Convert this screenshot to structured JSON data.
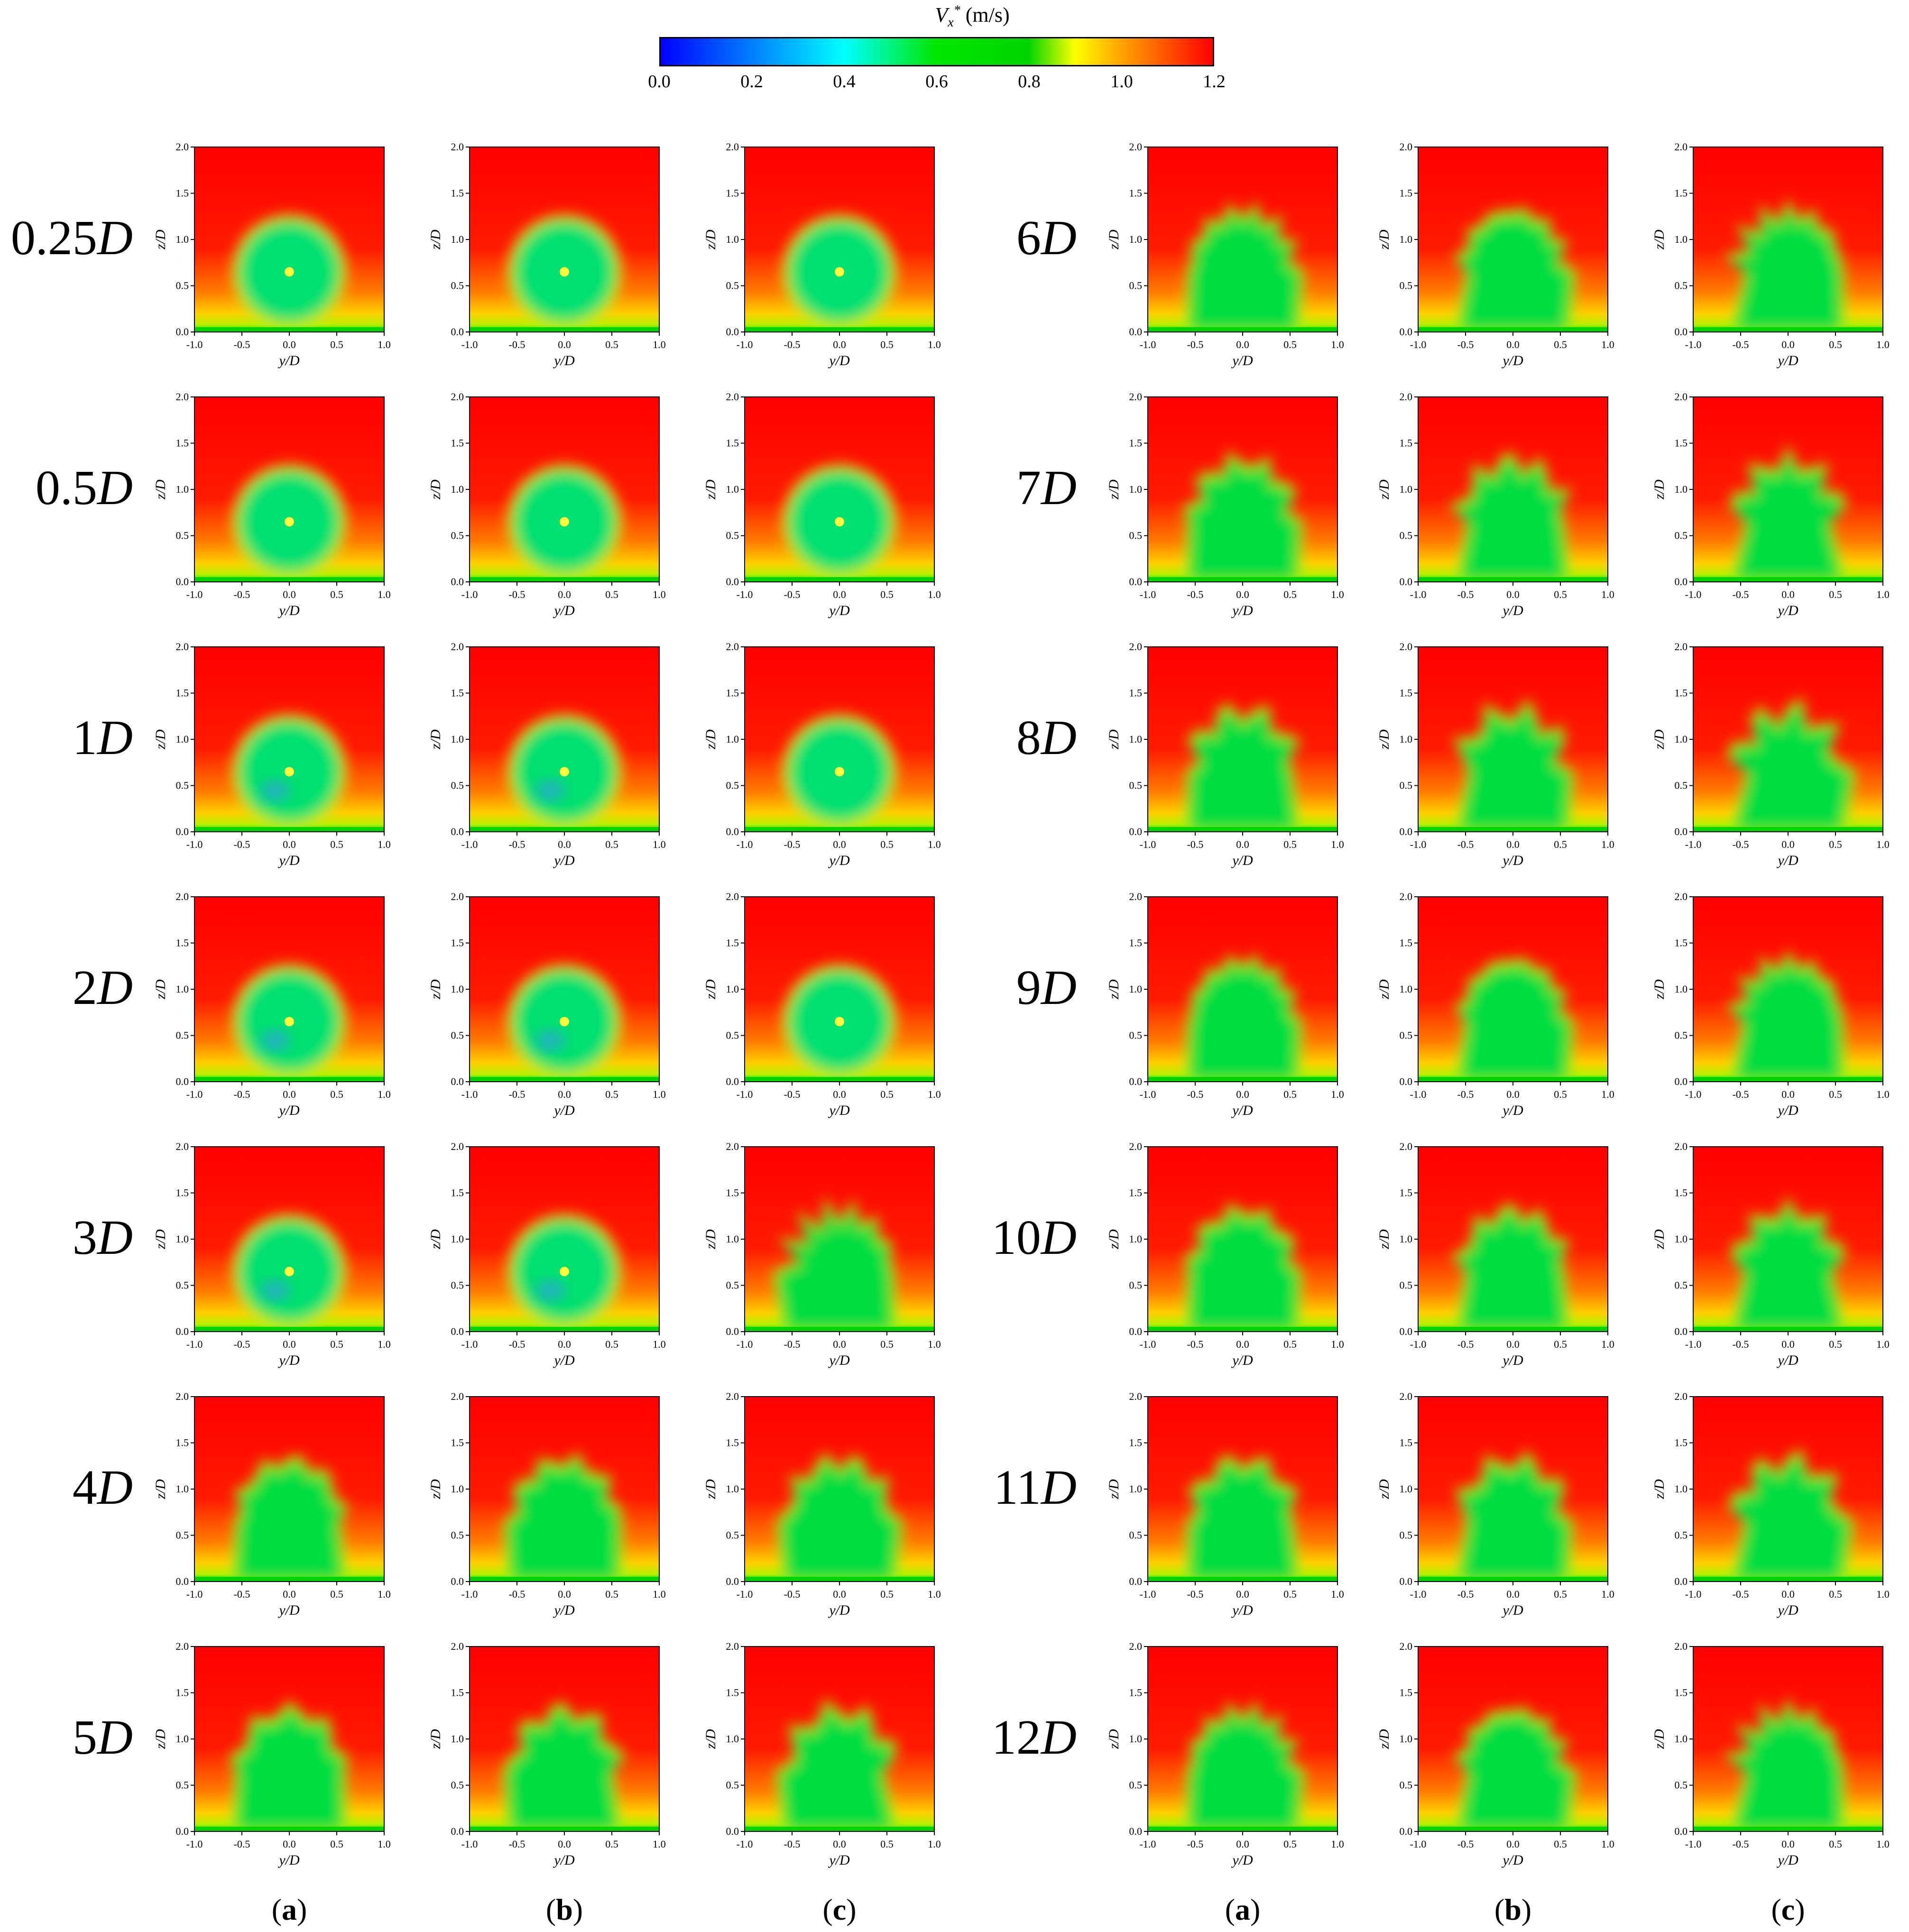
{
  "colorbar": {
    "var": "V",
    "sub": "x",
    "sup": "*",
    "unit": "(m/s)",
    "ticks": [
      "0.0",
      "0.2",
      "0.4",
      "0.6",
      "0.8",
      "1.0",
      "1.2"
    ],
    "range": [
      0.0,
      1.2
    ]
  },
  "rows_left": [
    {
      "num": "0.25",
      "unit": "D"
    },
    {
      "num": "0.5",
      "unit": "D"
    },
    {
      "num": "1",
      "unit": "D"
    },
    {
      "num": "2",
      "unit": "D"
    },
    {
      "num": "3",
      "unit": "D"
    },
    {
      "num": "4",
      "unit": "D"
    },
    {
      "num": "5",
      "unit": "D"
    }
  ],
  "rows_right": [
    {
      "num": "6",
      "unit": "D"
    },
    {
      "num": "7",
      "unit": "D"
    },
    {
      "num": "8",
      "unit": "D"
    },
    {
      "num": "9",
      "unit": "D"
    },
    {
      "num": "10",
      "unit": "D"
    },
    {
      "num": "11",
      "unit": "D"
    },
    {
      "num": "12",
      "unit": "D"
    }
  ],
  "column_labels": [
    "a",
    "b",
    "c",
    "a",
    "b",
    "c"
  ],
  "chart_data": {
    "type": "heatmap",
    "xlabel": "y/D",
    "ylabel": "z/D",
    "xlim": [
      -1.0,
      1.0
    ],
    "ylim": [
      0.0,
      2.0
    ],
    "xticks": [
      "-1.0",
      "-0.5",
      "0.0",
      "0.5",
      "1.0"
    ],
    "yticks": [
      "0.0",
      "0.5",
      "1.0",
      "1.5",
      "2.0"
    ],
    "colorscale": [
      [
        "0.0",
        "#0000ff"
      ],
      [
        "0.4",
        "#00ffff"
      ],
      [
        "0.6",
        "#00e600"
      ],
      [
        "0.8",
        "#00d400"
      ],
      [
        "0.9",
        "#ffff00"
      ],
      [
        "1.0",
        "#ffa500"
      ],
      [
        "1.2",
        "#ff0000"
      ]
    ],
    "wake_center_y": 0.0,
    "wake_center_z": 0.65,
    "wake_radius": 0.55
  }
}
